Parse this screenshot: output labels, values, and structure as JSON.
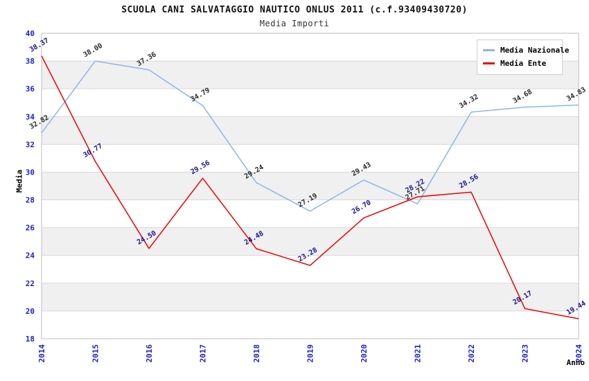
{
  "header": {
    "title": "SCUOLA CANI SALVATAGGIO NAUTICO ONLUS 2011 (c.f.93409430720)",
    "subtitle": "Media Importi"
  },
  "chart_data": {
    "type": "line",
    "x": [
      2014,
      2015,
      2016,
      2017,
      2018,
      2019,
      2020,
      2021,
      2022,
      2023,
      2024
    ],
    "series": [
      {
        "name": "Media Nazionale",
        "color": "#8ab6e8",
        "label_color": "#2a2a2a",
        "values": [
          32.82,
          38.0,
          37.36,
          34.79,
          29.24,
          27.19,
          29.43,
          27.71,
          34.32,
          34.68,
          34.83
        ]
      },
      {
        "name": "Media Ente",
        "color": "#ee0000",
        "label_color": "#16168c",
        "values": [
          38.37,
          30.77,
          24.5,
          29.56,
          24.48,
          23.28,
          26.7,
          28.22,
          28.56,
          20.17,
          19.44
        ]
      }
    ],
    "xlabel": "Anno",
    "ylabel": "Media",
    "ylim": [
      18,
      40
    ],
    "ytick_step": 2,
    "grid": "horizontal",
    "legend_position": "top-right",
    "point_label_decimals": 2,
    "colors": {
      "band_fill": "#f0f0f0",
      "gridline": "#d8d8d8",
      "frame": "#bdbdbd",
      "tick_label": "#1c1ccf",
      "axis_title": "#000000"
    }
  }
}
